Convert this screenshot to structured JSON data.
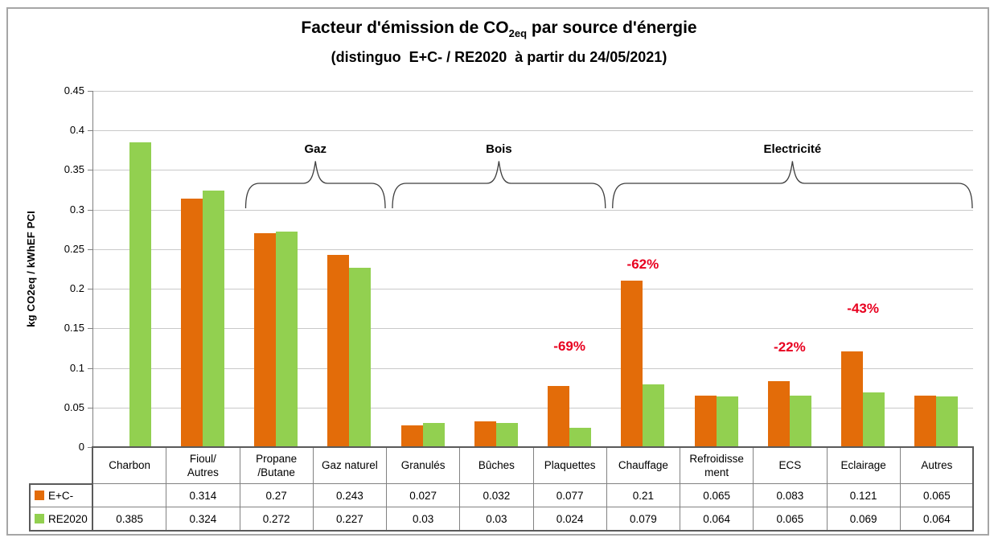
{
  "figure": {
    "title_prefix": "Facteur d'émission de CO",
    "title_sub": "2eq",
    "title_suffix": " par source d'énergie",
    "subtitle": "(distinguo  E+C- / RE2020  à partir du 24/05/2021)"
  },
  "chart_data": {
    "type": "bar",
    "title": "Facteur d'émission de CO2eq par source d'énergie (distinguo E+C- / RE2020 à partir du 24/05/2021)",
    "xlabel": "",
    "ylabel": "kg CO2eq / kWhEF PCI",
    "ylim": [
      0,
      0.45
    ],
    "yticks": [
      "0",
      "0.05",
      "0.1",
      "0.15",
      "0.2",
      "0.25",
      "0.3",
      "0.35",
      "0.4",
      "0.45"
    ],
    "grid": true,
    "legend_position": "table-left",
    "categories": [
      "Charbon",
      "Fioul/Autres",
      "Propane/Butane",
      "Gaz naturel",
      "Granulés",
      "Bûches",
      "Plaquettes",
      "Chauffage",
      "Refroidissement",
      "ECS",
      "Eclairage",
      "Autres"
    ],
    "categories_display": [
      "Charbon",
      "Fioul/\nAutres",
      "Propane\n/Butane",
      "Gaz naturel",
      "Granulés",
      "Bûches",
      "Plaquettes",
      "Chauffage",
      "Refroidisse\nment",
      "ECS",
      "Eclairage",
      "Autres"
    ],
    "series": [
      {
        "name": "E+C-",
        "color": "#e36c09",
        "values": [
          null,
          0.314,
          0.27,
          0.243,
          0.027,
          0.032,
          0.077,
          0.21,
          0.065,
          0.083,
          0.121,
          0.065
        ],
        "display": [
          "",
          "0.314",
          "0.27",
          "0.243",
          "0.027",
          "0.032",
          "0.077",
          "0.21",
          "0.065",
          "0.083",
          "0.121",
          "0.065"
        ]
      },
      {
        "name": "RE2020",
        "color": "#92d050",
        "values": [
          0.385,
          0.324,
          0.272,
          0.227,
          0.03,
          0.03,
          0.024,
          0.079,
          0.064,
          0.065,
          0.069,
          0.064
        ],
        "display": [
          "0.385",
          "0.324",
          "0.272",
          "0.227",
          "0.03",
          "0.03",
          "0.024",
          "0.079",
          "0.064",
          "0.065",
          "0.069",
          "0.064"
        ]
      }
    ],
    "annotations": [
      {
        "label": "-69%",
        "category": "Plaquettes",
        "y": 0.127
      },
      {
        "label": "-62%",
        "category": "Chauffage",
        "y": 0.231
      },
      {
        "label": "-22%",
        "category": "ECS",
        "y": 0.126
      },
      {
        "label": "-43%",
        "category": "Eclairage",
        "y": 0.175
      }
    ],
    "annotation_color": "#e8001f",
    "groups": [
      {
        "label": "Gaz",
        "from": "Propane/Butane",
        "to": "Gaz naturel"
      },
      {
        "label": "Bois",
        "from": "Granulés",
        "to": "Plaquettes"
      },
      {
        "label": "Electricité",
        "from": "Chauffage",
        "to": "Autres"
      }
    ]
  },
  "colors": {
    "bar_orange": "#e36c09",
    "bar_green": "#92d050",
    "annotation_red": "#e8001f",
    "gridline": "#c9c9c9",
    "axis": "#7f7f7f",
    "table_border": "#828282"
  }
}
